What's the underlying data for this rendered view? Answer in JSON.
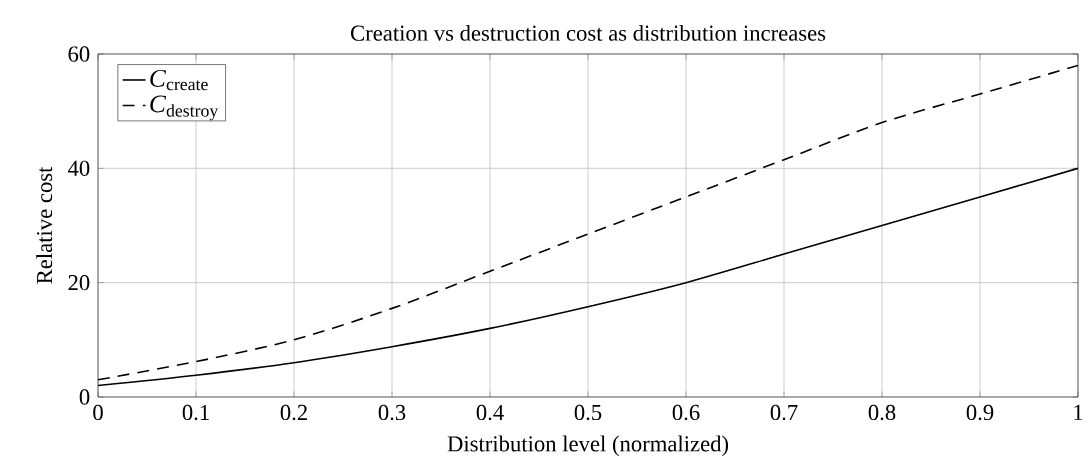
{
  "chart_data": {
    "type": "line",
    "title": "Creation vs destruction cost as distribution increases",
    "xlabel": "Distribution level (normalized)",
    "ylabel": "Relative cost",
    "x": [
      0,
      0.1,
      0.2,
      0.3,
      0.4,
      0.5,
      0.6,
      0.7,
      0.8,
      0.9,
      1
    ],
    "series": [
      {
        "name": "*C*$_{create}$",
        "color": "#000000",
        "line_style": "solid",
        "values": [
          2,
          3.8,
          6,
          8.8,
          12,
          15.8,
          20,
          25,
          30,
          35,
          40
        ]
      },
      {
        "name": "*C*$_{destroy}$",
        "color": "#000000",
        "line_style": "dashed",
        "values": [
          3,
          6.2,
          10,
          15.5,
          22,
          28.5,
          35,
          41.5,
          48,
          53,
          58
        ]
      }
    ],
    "xlim": [
      0,
      1
    ],
    "ylim": [
      0,
      60
    ],
    "xticks": [
      0,
      0.1,
      0.2,
      0.3,
      0.4,
      0.5,
      0.6,
      0.7,
      0.8,
      0.9,
      1
    ],
    "yticks": [
      0,
      20,
      40,
      60
    ],
    "grid": true,
    "legend": "top left",
    "marker": "none"
  }
}
